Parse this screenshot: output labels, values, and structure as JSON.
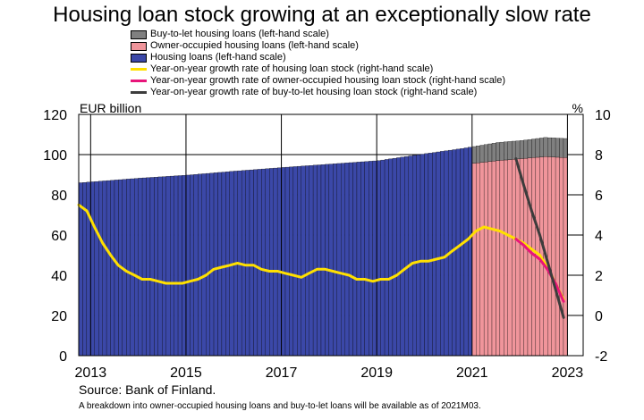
{
  "chart_data": {
    "type": "bar+line",
    "title": "Housing loan stock growing at an exceptionally slow rate",
    "left_axis": {
      "unit_label": "EUR billion",
      "ylim": [
        0,
        120
      ],
      "ticks": [
        0,
        20,
        40,
        60,
        80,
        100,
        120
      ]
    },
    "right_axis": {
      "unit_label": "%",
      "ylim": [
        -2,
        10
      ],
      "ticks": [
        -2,
        0,
        2,
        4,
        6,
        8,
        10
      ]
    },
    "x_axis": {
      "range": [
        2012.75,
        2023.33
      ],
      "tick_years": [
        2013,
        2015,
        2017,
        2019,
        2021,
        2023
      ],
      "tick_labels": [
        "2013",
        "2015",
        "2017",
        "2019",
        "2021",
        "2023"
      ]
    },
    "legend": [
      {
        "name": "Buy-to-let housing loans (left-hand scale)",
        "kind": "box",
        "color": "#808080"
      },
      {
        "name": "Owner-occupied housing loans (left-hand scale)",
        "kind": "box",
        "color": "#f0959b"
      },
      {
        "name": "Housing loans (left-hand scale)",
        "kind": "box",
        "color": "#3b48a8"
      },
      {
        "name": "Year-on-year growth rate of housing loan stock (right-hand scale)",
        "kind": "line",
        "color": "#ffe000"
      },
      {
        "name": "Year-on-year growth rate of owner-occupied housing loan stock (right-hand scale)",
        "kind": "line",
        "color": "#e8157a"
      },
      {
        "name": "Year-on-year growth rate of buy-to-let housing loan stock (right-hand scale)",
        "kind": "line",
        "color": "#3c3c3c"
      }
    ],
    "total_loans_series": {
      "unit": "EUR billion",
      "x": [
        2012.75,
        2014.0,
        2015.0,
        2016.0,
        2017.0,
        2018.0,
        2019.0,
        2020.0,
        2020.75,
        2021.0,
        2021.5,
        2022.0,
        2022.5,
        2022.9
      ],
      "y": [
        86.0,
        88.3,
        89.8,
        91.8,
        93.6,
        95.3,
        97.0,
        100.5,
        103.0,
        104.0,
        106.0,
        107.0,
        108.5,
        108.0
      ]
    },
    "breakdown_start": 2020.92,
    "owner_occupied_series": {
      "unit": "EUR billion",
      "x": [
        2020.92,
        2021.5,
        2022.0,
        2022.5,
        2022.9
      ],
      "y": [
        95.5,
        97.0,
        98.0,
        99.0,
        98.5
      ]
    },
    "growth_total_series": {
      "unit": "%",
      "x": [
        2012.75,
        2012.92,
        2013.08,
        2013.25,
        2013.42,
        2013.58,
        2013.75,
        2013.92,
        2014.08,
        2014.25,
        2014.42,
        2014.58,
        2014.75,
        2014.92,
        2015.08,
        2015.25,
        2015.42,
        2015.58,
        2015.75,
        2015.92,
        2016.08,
        2016.25,
        2016.42,
        2016.58,
        2016.75,
        2016.92,
        2017.08,
        2017.25,
        2017.42,
        2017.58,
        2017.75,
        2017.92,
        2018.08,
        2018.25,
        2018.42,
        2018.58,
        2018.75,
        2018.92,
        2019.08,
        2019.25,
        2019.42,
        2019.58,
        2019.75,
        2019.92,
        2020.08,
        2020.25,
        2020.42,
        2020.58,
        2020.75,
        2020.92,
        2021.08,
        2021.25,
        2021.42,
        2021.58,
        2021.75,
        2021.92,
        2022.08,
        2022.25,
        2022.42,
        2022.58,
        2022.75,
        2022.92
      ],
      "y": [
        5.5,
        5.2,
        4.4,
        3.6,
        3.0,
        2.5,
        2.2,
        2.0,
        1.8,
        1.8,
        1.7,
        1.6,
        1.6,
        1.6,
        1.7,
        1.8,
        2.0,
        2.3,
        2.4,
        2.5,
        2.6,
        2.5,
        2.5,
        2.3,
        2.2,
        2.2,
        2.1,
        2.0,
        1.9,
        2.1,
        2.3,
        2.3,
        2.2,
        2.1,
        2.0,
        1.8,
        1.8,
        1.7,
        1.8,
        1.8,
        2.0,
        2.3,
        2.6,
        2.7,
        2.7,
        2.8,
        2.9,
        3.2,
        3.5,
        3.8,
        4.2,
        4.4,
        4.3,
        4.2,
        4.0,
        3.8,
        3.6,
        3.3,
        3.0,
        2.4,
        1.6,
        0.8
      ]
    },
    "growth_owner_occupied_series": {
      "unit": "%",
      "x": [
        2021.92,
        2022.08,
        2022.25,
        2022.42,
        2022.58,
        2022.75,
        2022.92
      ],
      "y": [
        3.8,
        3.5,
        3.1,
        2.8,
        2.3,
        1.6,
        0.7
      ]
    },
    "growth_buy_to_let_series": {
      "unit": "%",
      "x": [
        2021.92,
        2022.08,
        2022.25,
        2022.42,
        2022.58,
        2022.75,
        2022.92
      ],
      "y": [
        7.8,
        6.5,
        5.2,
        4.0,
        2.7,
        1.3,
        -0.1
      ]
    }
  },
  "source": "Source: Bank of Finland.",
  "footnote": "A breakdown into owner-occupied housing loans and buy-to-let loans will be available as of 2021M03."
}
